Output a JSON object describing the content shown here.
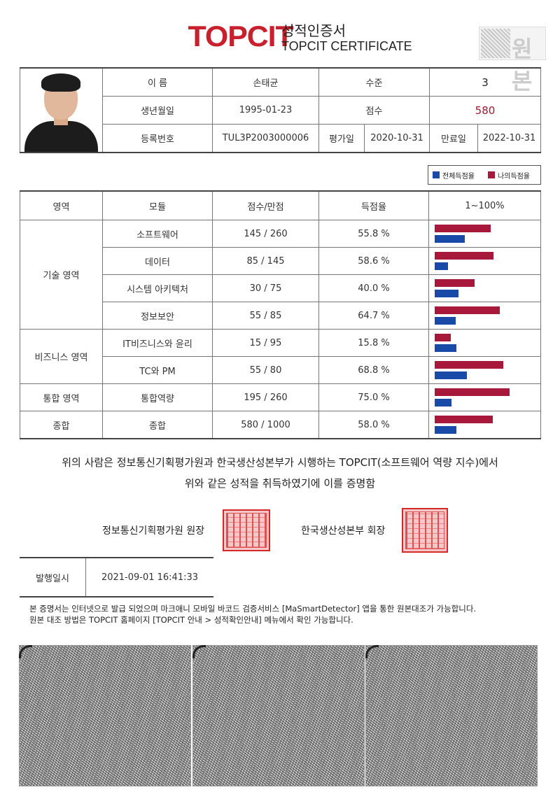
{
  "header": {
    "logo": "TOPCIT",
    "title_ko": "성적인증서",
    "title_en": "TOPCIT CERTIFICATE",
    "original_mark": "원본"
  },
  "info": {
    "name_label": "이    름",
    "name": "손태균",
    "level_label": "수준",
    "level": "3",
    "birth_label": "생년월일",
    "birth": "1995-01-23",
    "score_label": "점수",
    "score": "580",
    "reg_label": "등록번호",
    "reg": "TUL3P2003000006",
    "eval_label": "평가일",
    "eval_date": "2020-10-31",
    "expire_label": "만료일",
    "expire_date": "2022-10-31"
  },
  "legend": {
    "all": "전체득점율",
    "mine": "나의득점율",
    "all_color": "#1a4aa8",
    "mine_color": "#a8183a"
  },
  "table_headers": {
    "area": "영역",
    "module": "모듈",
    "score": "점수/만점",
    "rate": "득점율",
    "range": "1~100%"
  },
  "groups": [
    {
      "area": "기술 영역",
      "rows": [
        {
          "module": "소프트웨어",
          "score": "145 / 260",
          "rate": "55.8 %",
          "mine": 55.8,
          "all": 30
        },
        {
          "module": "데이터",
          "score": "85 / 145",
          "rate": "58.6 %",
          "mine": 58.6,
          "all": 13
        },
        {
          "module": "시스템 아키텍처",
          "score": "30 / 75",
          "rate": "40.0 %",
          "mine": 40.0,
          "all": 24
        },
        {
          "module": "정보보안",
          "score": "55 / 85",
          "rate": "64.7 %",
          "mine": 64.7,
          "all": 21
        }
      ]
    },
    {
      "area": "비즈니스 영역",
      "rows": [
        {
          "module": "IT비즈니스와 윤리",
          "score": "15 / 95",
          "rate": "15.8 %",
          "mine": 15.8,
          "all": 22
        },
        {
          "module": "TC와 PM",
          "score": "55 / 80",
          "rate": "68.8 %",
          "mine": 68.8,
          "all": 32
        }
      ]
    },
    {
      "area": "통합 영역",
      "rows": [
        {
          "module": "통합역량",
          "score": "195 / 260",
          "rate": "75.0 %",
          "mine": 75.0,
          "all": 17
        }
      ]
    },
    {
      "area": "종합",
      "rows": [
        {
          "module": "종합",
          "score": "580 / 1000",
          "rate": "58.0 %",
          "mine": 58.0,
          "all": 22
        }
      ]
    }
  ],
  "statement": {
    "line1": "위의 사람은 정보통신기획평가원과 한국생산성본부가 시행하는 TOPCIT(소프트웨어 역량 지수)에서",
    "line2": "위와 같은 성적을 취득하였기에 이를 증명함"
  },
  "signers": {
    "first": "정보통신기획평가원 원장",
    "second": "한국생산성본부 회장"
  },
  "issue": {
    "label": "발행일시",
    "value": "2021-09-01 16:41:33"
  },
  "notice": {
    "line1": "본 증명서는 인터넷으로 발급 되었으며 마크애니 모바일 바코드 검증서비스 [MaSmartDetector] 앱을 통한 원본대조가 가능합니다.",
    "line2": "원본 대조 방법은 TOPCIT 홈페이지 [TOPCIT 안내 > 성적확인안내] 메뉴에서 확인 가능합니다."
  }
}
